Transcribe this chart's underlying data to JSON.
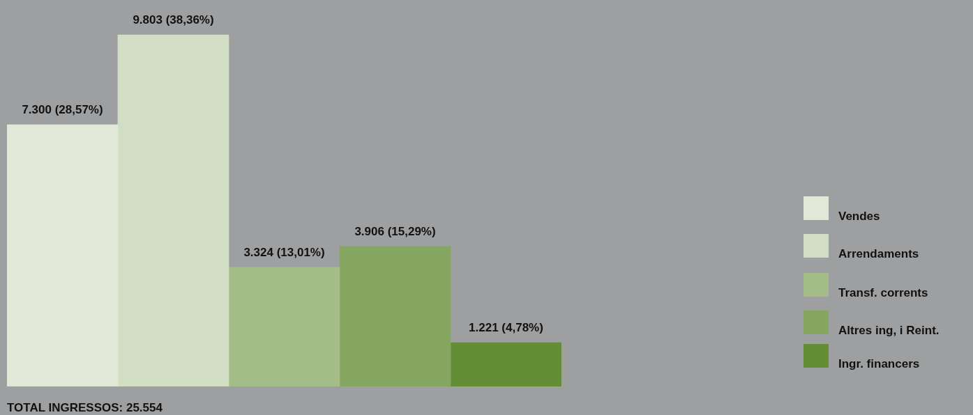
{
  "chart_data": {
    "type": "bar",
    "categories": [
      null
    ],
    "series": [
      {
        "name": "Vendes",
        "color": "#e1e8d8",
        "values": [
          7300
        ],
        "value_labels": [
          "7.300 (28,57%)"
        ]
      },
      {
        "name": "Arrendaments",
        "color": "#d2dec4",
        "values": [
          9803
        ],
        "value_labels": [
          "9.803 (38,36%)"
        ]
      },
      {
        "name": "Transf. corrents",
        "color": "#a3bc88",
        "values": [
          3324
        ],
        "value_labels": [
          "3.324 (13,01%)"
        ]
      },
      {
        "name": "Altres ing, i Reint.",
        "color": "#85a660",
        "values": [
          3906
        ],
        "value_labels": [
          "3.906 (15,29%)"
        ]
      },
      {
        "name": "Ingr. financers",
        "color": "#638e36",
        "values": [
          1221
        ],
        "value_labels": [
          "1.221 (4,78%)"
        ]
      }
    ],
    "annotations": [
      "TOTAL INGRESSOS: 25.554"
    ],
    "legend": "right"
  }
}
